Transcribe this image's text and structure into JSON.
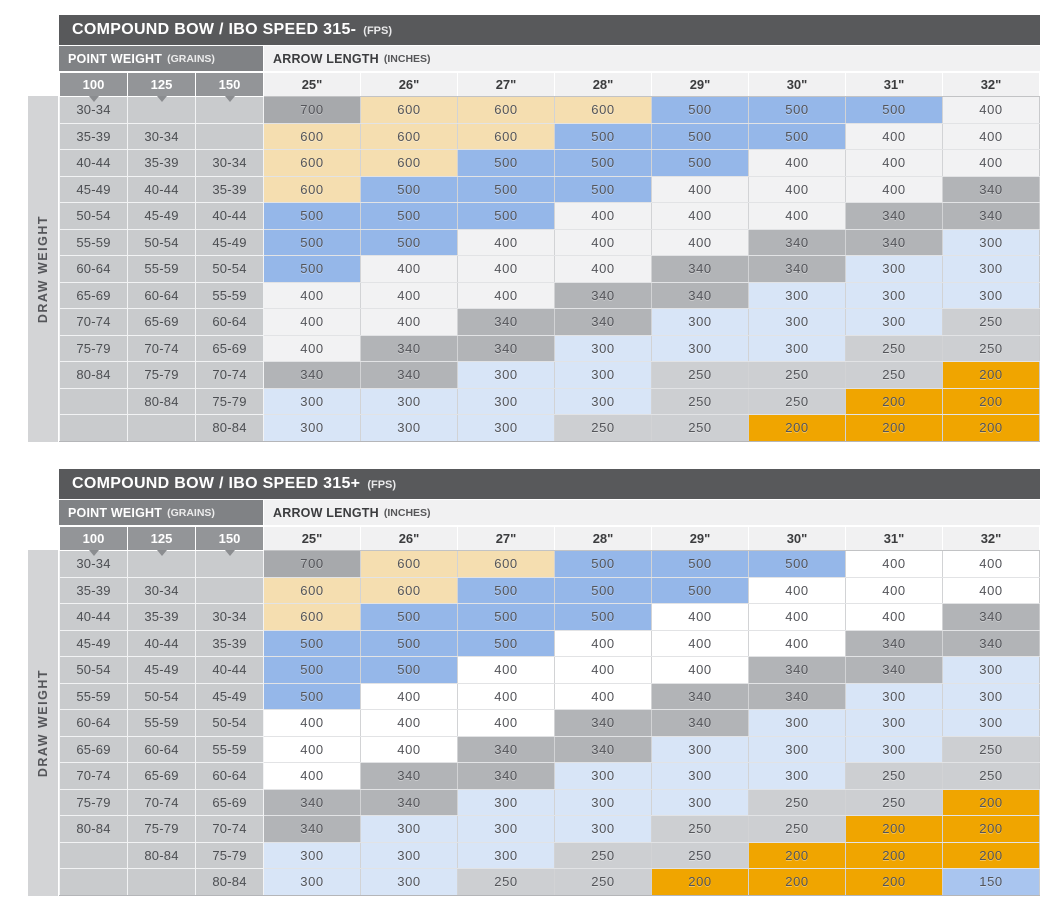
{
  "chart_data": [
    {
      "type": "table",
      "title": "COMPOUND BOW / IBO SPEED 315-",
      "title_unit": "(FPS)",
      "side_label": "DRAW WEIGHT",
      "col_group_left": {
        "label": "POINT WEIGHT",
        "unit": "(GRAINS)"
      },
      "col_group_right": {
        "label": "ARROW LENGTH",
        "unit": "(INCHES)"
      },
      "point_weight_columns": [
        "100",
        "125",
        "150"
      ],
      "arrow_length_columns": [
        "25\"",
        "26\"",
        "27\"",
        "28\"",
        "29\"",
        "30\"",
        "31\"",
        "32\""
      ],
      "rows": [
        {
          "labels": [
            "30-34",
            "",
            ""
          ],
          "values": [
            700,
            600,
            600,
            600,
            500,
            500,
            500,
            400
          ]
        },
        {
          "labels": [
            "35-39",
            "30-34",
            ""
          ],
          "values": [
            600,
            600,
            600,
            500,
            500,
            500,
            400,
            400
          ]
        },
        {
          "labels": [
            "40-44",
            "35-39",
            "30-34"
          ],
          "values": [
            600,
            600,
            500,
            500,
            500,
            400,
            400,
            400
          ]
        },
        {
          "labels": [
            "45-49",
            "40-44",
            "35-39"
          ],
          "values": [
            600,
            500,
            500,
            500,
            400,
            400,
            400,
            340
          ]
        },
        {
          "labels": [
            "50-54",
            "45-49",
            "40-44"
          ],
          "values": [
            500,
            500,
            500,
            400,
            400,
            400,
            340,
            340
          ]
        },
        {
          "labels": [
            "55-59",
            "50-54",
            "45-49"
          ],
          "values": [
            500,
            500,
            400,
            400,
            400,
            340,
            340,
            300
          ]
        },
        {
          "labels": [
            "60-64",
            "55-59",
            "50-54"
          ],
          "values": [
            500,
            400,
            400,
            400,
            340,
            340,
            300,
            300
          ]
        },
        {
          "labels": [
            "65-69",
            "60-64",
            "55-59"
          ],
          "values": [
            400,
            400,
            400,
            340,
            340,
            300,
            300,
            300
          ]
        },
        {
          "labels": [
            "70-74",
            "65-69",
            "60-64"
          ],
          "values": [
            400,
            400,
            340,
            340,
            300,
            300,
            300,
            250
          ]
        },
        {
          "labels": [
            "75-79",
            "70-74",
            "65-69"
          ],
          "values": [
            400,
            340,
            340,
            300,
            300,
            300,
            250,
            250
          ]
        },
        {
          "labels": [
            "80-84",
            "75-79",
            "70-74"
          ],
          "values": [
            340,
            340,
            300,
            300,
            250,
            250,
            250,
            200
          ]
        },
        {
          "labels": [
            "",
            "80-84",
            "75-79"
          ],
          "values": [
            300,
            300,
            300,
            300,
            250,
            250,
            200,
            200
          ]
        },
        {
          "labels": [
            "",
            "",
            "80-84"
          ],
          "values": [
            300,
            300,
            300,
            250,
            250,
            200,
            200,
            200
          ]
        }
      ],
      "spine_colors": {
        "700": "#a7a9ac",
        "600": "#f5deb0",
        "500": "#95b7e9",
        "400": "#f2f2f3",
        "340": "#b2b4b7",
        "300": "#d8e5f7",
        "250": "#cdcfd2",
        "200": "#f0a500"
      }
    },
    {
      "type": "table",
      "title": "COMPOUND BOW / IBO SPEED 315+",
      "title_unit": "(FPS)",
      "side_label": "DRAW WEIGHT",
      "col_group_left": {
        "label": "POINT WEIGHT",
        "unit": "(GRAINS)"
      },
      "col_group_right": {
        "label": "ARROW LENGTH",
        "unit": "(INCHES)"
      },
      "point_weight_columns": [
        "100",
        "125",
        "150"
      ],
      "arrow_length_columns": [
        "25\"",
        "26\"",
        "27\"",
        "28\"",
        "29\"",
        "30\"",
        "31\"",
        "32\""
      ],
      "rows": [
        {
          "labels": [
            "30-34",
            "",
            ""
          ],
          "values": [
            700,
            600,
            600,
            500,
            500,
            500,
            400,
            400
          ]
        },
        {
          "labels": [
            "35-39",
            "30-34",
            ""
          ],
          "values": [
            600,
            600,
            500,
            500,
            500,
            400,
            400,
            400
          ]
        },
        {
          "labels": [
            "40-44",
            "35-39",
            "30-34"
          ],
          "values": [
            600,
            500,
            500,
            500,
            400,
            400,
            400,
            340
          ]
        },
        {
          "labels": [
            "45-49",
            "40-44",
            "35-39"
          ],
          "values": [
            500,
            500,
            500,
            400,
            400,
            400,
            340,
            340
          ]
        },
        {
          "labels": [
            "50-54",
            "45-49",
            "40-44"
          ],
          "values": [
            500,
            500,
            400,
            400,
            400,
            340,
            340,
            300
          ]
        },
        {
          "labels": [
            "55-59",
            "50-54",
            "45-49"
          ],
          "values": [
            500,
            400,
            400,
            400,
            340,
            340,
            300,
            300
          ]
        },
        {
          "labels": [
            "60-64",
            "55-59",
            "50-54"
          ],
          "values": [
            400,
            400,
            400,
            340,
            340,
            300,
            300,
            300
          ]
        },
        {
          "labels": [
            "65-69",
            "60-64",
            "55-59"
          ],
          "values": [
            400,
            400,
            340,
            340,
            300,
            300,
            300,
            250
          ]
        },
        {
          "labels": [
            "70-74",
            "65-69",
            "60-64"
          ],
          "values": [
            400,
            340,
            340,
            300,
            300,
            300,
            250,
            250
          ]
        },
        {
          "labels": [
            "75-79",
            "70-74",
            "65-69"
          ],
          "values": [
            340,
            340,
            300,
            300,
            300,
            250,
            250,
            200
          ]
        },
        {
          "labels": [
            "80-84",
            "75-79",
            "70-74"
          ],
          "values": [
            340,
            300,
            300,
            300,
            250,
            250,
            200,
            200
          ]
        },
        {
          "labels": [
            "",
            "80-84",
            "75-79"
          ],
          "values": [
            300,
            300,
            300,
            250,
            250,
            200,
            200,
            200
          ]
        },
        {
          "labels": [
            "",
            "",
            "80-84"
          ],
          "values": [
            300,
            300,
            250,
            250,
            200,
            200,
            200,
            150
          ]
        }
      ],
      "spine_colors": {
        "700": "#a7a9ac",
        "600": "#f5deb0",
        "500": "#95b7e9",
        "400": "#ffffff",
        "340": "#b2b4b7",
        "300": "#d8e5f7",
        "250": "#cdcfd2",
        "200": "#f0a500",
        "150": "#a9c5ef"
      }
    }
  ]
}
